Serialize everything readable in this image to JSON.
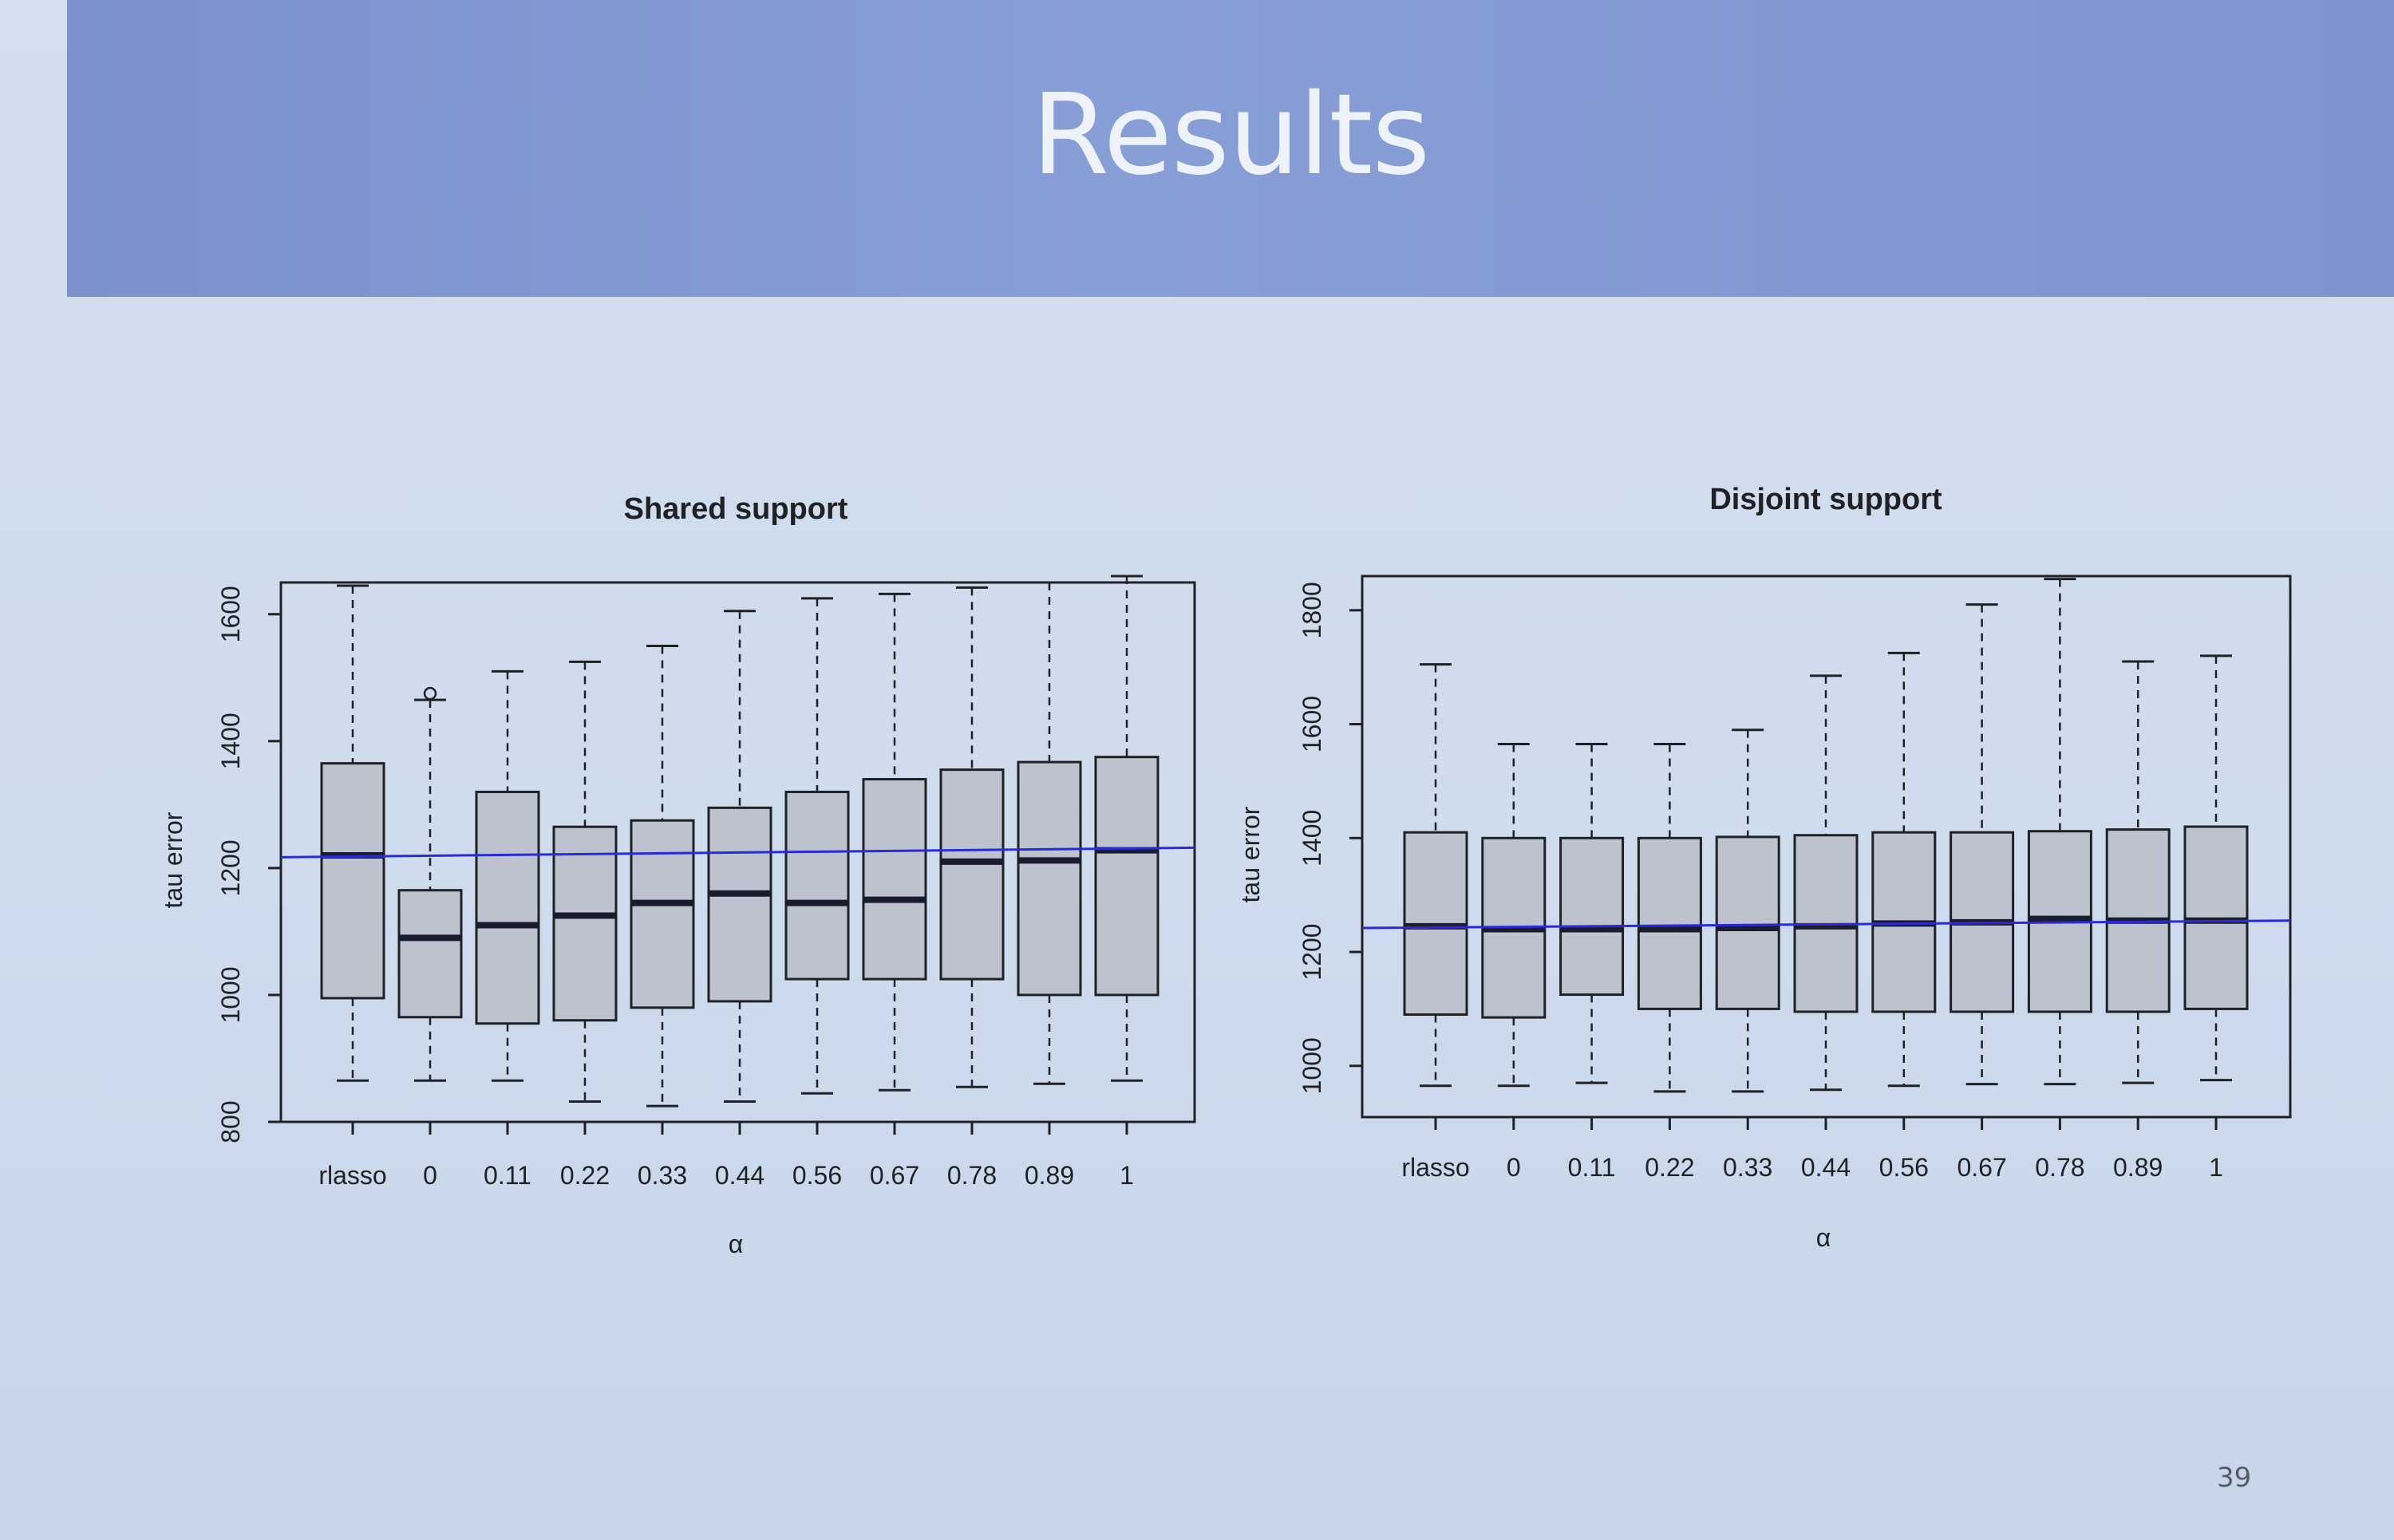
{
  "slide": {
    "title": "Results",
    "page_number": "39"
  },
  "colors": {
    "header": "#8096d2",
    "box_fill": "#bcc3ce",
    "median": "#1b1b2e",
    "reference_line": "#2b2bd6",
    "axis": "#1f2124"
  },
  "chart_data": [
    {
      "type": "boxplot",
      "title": "Shared support",
      "xlabel": "α",
      "ylabel": "tau error",
      "categories": [
        "rlasso",
        "0",
        "0.11",
        "0.22",
        "0.33",
        "0.44",
        "0.56",
        "0.67",
        "0.78",
        "0.89",
        "1"
      ],
      "ylim": [
        800,
        1650
      ],
      "yticks": [
        800,
        1000,
        1200,
        1400,
        1600
      ],
      "boxes": [
        {
          "min": 865,
          "q1": 995,
          "median": 1220,
          "q3": 1365,
          "max": 1645
        },
        {
          "min": 865,
          "q1": 965,
          "median": 1090,
          "q3": 1165,
          "max": 1465
        },
        {
          "min": 865,
          "q1": 955,
          "median": 1110,
          "q3": 1320,
          "max": 1510
        },
        {
          "min": 832,
          "q1": 960,
          "median": 1125,
          "q3": 1265,
          "max": 1525
        },
        {
          "min": 825,
          "q1": 980,
          "median": 1145,
          "q3": 1275,
          "max": 1550
        },
        {
          "min": 832,
          "q1": 990,
          "median": 1160,
          "q3": 1295,
          "max": 1605
        },
        {
          "min": 845,
          "q1": 1025,
          "median": 1145,
          "q3": 1320,
          "max": 1625
        },
        {
          "min": 850,
          "q1": 1025,
          "median": 1150,
          "q3": 1340,
          "max": 1632
        },
        {
          "min": 855,
          "q1": 1025,
          "median": 1210,
          "q3": 1355,
          "max": 1642
        },
        {
          "min": 860,
          "q1": 1000,
          "median": 1212,
          "q3": 1367,
          "max": 1650
        },
        {
          "min": 865,
          "q1": 1000,
          "median": 1228,
          "q3": 1375,
          "max": 1660
        }
      ],
      "outliers": [
        {
          "category": "0",
          "value": 1475
        }
      ],
      "reference_line": {
        "start": 1217,
        "end": 1232
      }
    },
    {
      "type": "boxplot",
      "title": "Disjoint support",
      "xlabel": "α",
      "ylabel": "tau error",
      "categories": [
        "rlasso",
        "0",
        "0.11",
        "0.22",
        "0.33",
        "0.44",
        "0.56",
        "0.67",
        "0.78",
        "0.89",
        "1"
      ],
      "ylim": [
        910,
        1860
      ],
      "yticks": [
        1000,
        1200,
        1400,
        1600,
        1800
      ],
      "boxes": [
        {
          "min": 965,
          "q1": 1090,
          "median": 1245,
          "q3": 1410,
          "max": 1705
        },
        {
          "min": 965,
          "q1": 1085,
          "median": 1240,
          "q3": 1400,
          "max": 1565
        },
        {
          "min": 970,
          "q1": 1125,
          "median": 1240,
          "q3": 1400,
          "max": 1565
        },
        {
          "min": 955,
          "q1": 1100,
          "median": 1240,
          "q3": 1400,
          "max": 1565
        },
        {
          "min": 955,
          "q1": 1100,
          "median": 1242,
          "q3": 1402,
          "max": 1590
        },
        {
          "min": 958,
          "q1": 1095,
          "median": 1245,
          "q3": 1405,
          "max": 1685
        },
        {
          "min": 965,
          "q1": 1095,
          "median": 1250,
          "q3": 1410,
          "max": 1725
        },
        {
          "min": 968,
          "q1": 1095,
          "median": 1252,
          "q3": 1410,
          "max": 1810
        },
        {
          "min": 968,
          "q1": 1095,
          "median": 1258,
          "q3": 1412,
          "max": 1855
        },
        {
          "min": 970,
          "q1": 1095,
          "median": 1255,
          "q3": 1415,
          "max": 1710
        },
        {
          "min": 975,
          "q1": 1100,
          "median": 1255,
          "q3": 1420,
          "max": 1720
        }
      ],
      "outliers": [],
      "reference_line": {
        "start": 1242,
        "end": 1255
      }
    }
  ]
}
